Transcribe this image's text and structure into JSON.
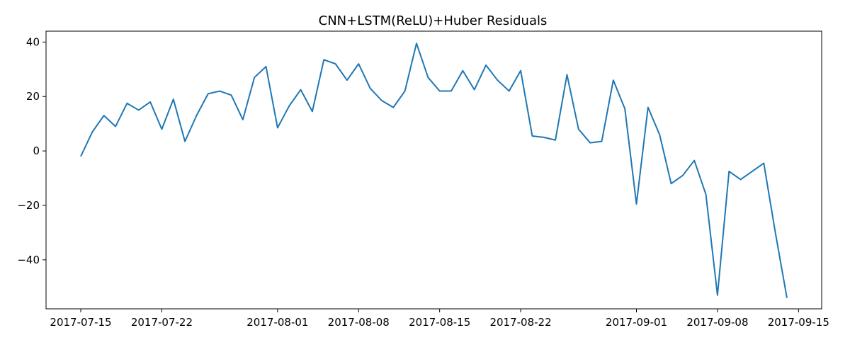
{
  "chart_data": {
    "type": "line",
    "title": "CNN+LSTM(ReLU)+Huber Residuals",
    "xlabel": "",
    "ylabel": "",
    "xlim": [
      "2017-07-12",
      "2017-09-17"
    ],
    "ylim": [
      -58,
      44
    ],
    "grid": false,
    "x_ticks": [
      "2017-07-15",
      "2017-07-22",
      "2017-08-01",
      "2017-08-08",
      "2017-08-15",
      "2017-08-22",
      "2017-09-01",
      "2017-09-08",
      "2017-09-15"
    ],
    "y_ticks": [
      40,
      20,
      0,
      -20,
      -40
    ],
    "y_tick_labels": [
      "40",
      "20",
      "0",
      "−20",
      "−40"
    ],
    "series": [
      {
        "color": "#1f77b4",
        "x": [
          "2017-07-15",
          "2017-07-16",
          "2017-07-17",
          "2017-07-18",
          "2017-07-19",
          "2017-07-20",
          "2017-07-21",
          "2017-07-22",
          "2017-07-23",
          "2017-07-24",
          "2017-07-25",
          "2017-07-26",
          "2017-07-27",
          "2017-07-28",
          "2017-07-29",
          "2017-07-30",
          "2017-07-31",
          "2017-08-01",
          "2017-08-02",
          "2017-08-03",
          "2017-08-04",
          "2017-08-05",
          "2017-08-06",
          "2017-08-07",
          "2017-08-08",
          "2017-08-09",
          "2017-08-10",
          "2017-08-11",
          "2017-08-12",
          "2017-08-13",
          "2017-08-14",
          "2017-08-15",
          "2017-08-16",
          "2017-08-17",
          "2017-08-18",
          "2017-08-19",
          "2017-08-20",
          "2017-08-21",
          "2017-08-22",
          "2017-08-23",
          "2017-08-24",
          "2017-08-25",
          "2017-08-26",
          "2017-08-27",
          "2017-08-28",
          "2017-08-29",
          "2017-08-30",
          "2017-08-31",
          "2017-09-01",
          "2017-09-02",
          "2017-09-03",
          "2017-09-04",
          "2017-09-05",
          "2017-09-06",
          "2017-09-07",
          "2017-09-08",
          "2017-09-09",
          "2017-09-10",
          "2017-09-11",
          "2017-09-12",
          "2017-09-13",
          "2017-09-14"
        ],
        "values": [
          -2,
          7,
          13,
          9,
          17.5,
          15,
          18,
          8,
          19,
          3.5,
          13,
          21,
          22,
          20.5,
          11.5,
          27,
          31,
          8.5,
          16.5,
          22.5,
          14.5,
          33.5,
          32,
          26,
          32,
          23,
          18.5,
          16,
          22,
          39.5,
          27,
          22,
          22,
          29.5,
          22.5,
          31.5,
          26,
          22,
          29.5,
          5.5,
          5,
          4,
          28,
          8,
          3,
          3.5,
          26,
          15.5,
          -19.5,
          16,
          6,
          -12,
          -9,
          -3.5,
          -16,
          -53,
          -7.5,
          -10.5,
          -7.5,
          -4.5,
          -30,
          -54
        ]
      }
    ]
  }
}
